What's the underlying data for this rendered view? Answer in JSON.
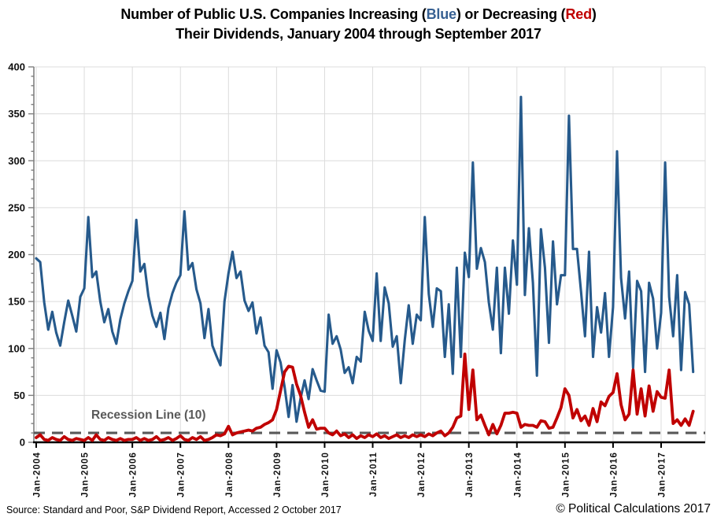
{
  "title": {
    "part1": "Number of Public U.S. Companies Increasing (",
    "part2": "Blue",
    "part3": ") or Decreasing (",
    "part4": "Red",
    "part5": ")",
    "line2": "Their Dividends, January 2004 through September 2017"
  },
  "annotations": {
    "recession_label": "Recession Line (10)"
  },
  "footer": {
    "source": "Source:  Standard and Poor,  S&P Dividend  Report,  Accessed 2 October 2017",
    "copyright": "© Political Calculations 2017"
  },
  "colors": {
    "increases_line": "#265a8c",
    "decreases_line": "#c00000",
    "recession_line": "#595959",
    "gridline": "#dcdcdc",
    "y_axis": "#808080",
    "x_axis": "#000000",
    "title_blue": "#376092",
    "title_red": "#C00000"
  },
  "chart_data": {
    "type": "line",
    "title": "Number of Public U.S. Companies Increasing (Blue) or Decreasing (Red) Their Dividends, January 2004 through September 2017",
    "x_start": "Jan-2004",
    "x_end": "Sep-2017",
    "x_frequency": "monthly",
    "x_tick_labels": [
      "Jan-2004",
      "Jan-2005",
      "Jan-2006",
      "Jan-2007",
      "Jan-2008",
      "Jan-2009",
      "Jan-2010",
      "Jan-2011",
      "Jan-2012",
      "Jan-2013",
      "Jan-2014",
      "Jan-2015",
      "Jan-2016",
      "Jan-2017"
    ],
    "y_ticks": [
      0,
      50,
      100,
      150,
      200,
      250,
      300,
      350,
      400
    ],
    "ylim": [
      0,
      400
    ],
    "grid": true,
    "legend": "none (colors referenced in title)",
    "recession_line_value": 10,
    "series": [
      {
        "name": "Companies Increasing Dividends (Blue)",
        "color": "#265a8c",
        "values": [
          196,
          192,
          149,
          120,
          139,
          117,
          103,
          128,
          151,
          135,
          118,
          155,
          164,
          240,
          176,
          182,
          150,
          128,
          142,
          118,
          105,
          131,
          148,
          161,
          172,
          237,
          182,
          190,
          156,
          135,
          123,
          138,
          110,
          143,
          159,
          170,
          178,
          246,
          184,
          191,
          163,
          148,
          111,
          142,
          103,
          92,
          82,
          150,
          180,
          203,
          175,
          182,
          151,
          140,
          149,
          116,
          133,
          103,
          96,
          57,
          98,
          85,
          59,
          27,
          61,
          22,
          47,
          66,
          46,
          78,
          66,
          55,
          54,
          136,
          105,
          113,
          99,
          74,
          80,
          63,
          91,
          86,
          139,
          119,
          108,
          180,
          108,
          165,
          148,
          102,
          113,
          63,
          109,
          146,
          105,
          136,
          130,
          240,
          158,
          123,
          164,
          161,
          91,
          147,
          73,
          186,
          91,
          202,
          176,
          298,
          185,
          207,
          192,
          149,
          120,
          186,
          95,
          186,
          137,
          215,
          168,
          368,
          157,
          228,
          170,
          71,
          227,
          186,
          106,
          214,
          147,
          178,
          178,
          348,
          206,
          206,
          161,
          113,
          203,
          91,
          144,
          117,
          159,
          91,
          144,
          310,
          175,
          132,
          182,
          79,
          172,
          161,
          75,
          170,
          153,
          100,
          138,
          298,
          155,
          113,
          178,
          77,
          160,
          147,
          75
        ]
      },
      {
        "name": "Companies Decreasing Dividends (Red)",
        "color": "#c00000",
        "values": [
          5,
          8,
          3,
          2,
          5,
          3,
          2,
          6,
          3,
          2,
          4,
          3,
          2,
          5,
          2,
          8,
          3,
          2,
          5,
          3,
          2,
          4,
          2,
          3,
          3,
          5,
          2,
          4,
          2,
          3,
          6,
          2,
          3,
          5,
          2,
          4,
          7,
          3,
          2,
          5,
          3,
          6,
          2,
          3,
          5,
          8,
          7,
          9,
          17,
          8,
          10,
          11,
          12,
          13,
          12,
          15,
          16,
          19,
          21,
          24,
          35,
          55,
          75,
          81,
          80,
          62,
          50,
          32,
          16,
          24,
          14,
          15,
          15,
          10,
          8,
          12,
          7,
          9,
          5,
          8,
          4,
          7,
          5,
          8,
          6,
          9,
          5,
          7,
          4,
          6,
          8,
          5,
          7,
          5,
          8,
          6,
          8,
          6,
          9,
          7,
          10,
          12,
          7,
          10,
          16,
          26,
          28,
          94,
          35,
          77,
          24,
          29,
          18,
          8,
          19,
          9,
          18,
          31,
          31,
          32,
          31,
          16,
          19,
          18,
          18,
          16,
          23,
          22,
          15,
          16,
          26,
          37,
          57,
          50,
          26,
          35,
          23,
          28,
          18,
          36,
          22,
          43,
          39,
          49,
          53,
          73,
          40,
          24,
          30,
          77,
          30,
          57,
          28,
          60,
          33,
          54,
          48,
          47,
          77,
          20,
          24,
          18,
          25,
          18,
          33
        ]
      }
    ]
  }
}
